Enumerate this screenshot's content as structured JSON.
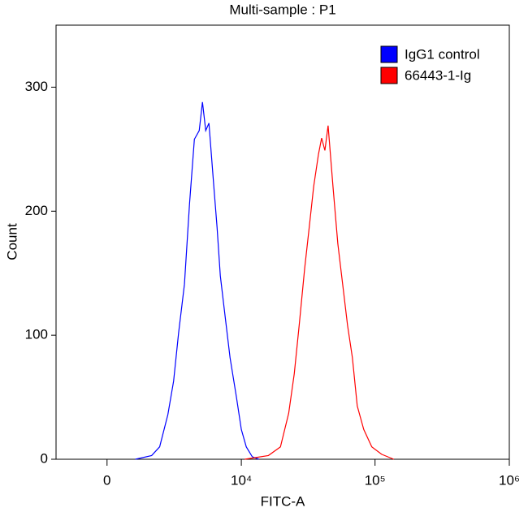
{
  "chart_data": {
    "type": "line",
    "title": "Multi-sample : P1",
    "x_label": "FITC-A",
    "y_label": "Count",
    "x_scale": "biexponential",
    "xlim": [
      -2000,
      1000000
    ],
    "ylim": [
      0,
      350
    ],
    "xticks": [
      0,
      {
        "value": 10000,
        "label": "10⁴"
      },
      {
        "value": 100000,
        "label": "10⁵"
      },
      {
        "value": 1000000,
        "label": "10⁶"
      }
    ],
    "yticks": [
      0,
      100,
      200,
      300
    ],
    "series": [
      {
        "name": "IgG1 control",
        "color": "#0000ff",
        "x": [
          1020,
          1700,
          2080,
          2510,
          2840,
          3150,
          3540,
          3910,
          4290,
          4700,
          4990,
          5300,
          5620,
          6140,
          6510,
          6900,
          7520,
          8200,
          9180,
          10000,
          10900,
          12100,
          13600
        ],
        "values": [
          0,
          3,
          10,
          36,
          63,
          102,
          141,
          206,
          258,
          265,
          288,
          265,
          271,
          220,
          187,
          148,
          115,
          82,
          50,
          24,
          10,
          2,
          0
        ]
      },
      {
        "name": "66443-1-Ig",
        "color": "#ff0000",
        "x": [
          10600,
          16000,
          19700,
          22700,
          25000,
          27200,
          29900,
          32100,
          34900,
          37900,
          40000,
          42300,
          44700,
          48600,
          52800,
          57400,
          62400,
          67800,
          73700,
          82400,
          94600,
          112000,
          138000
        ],
        "values": [
          0,
          3,
          10,
          37,
          69,
          108,
          154,
          184,
          220,
          246,
          259,
          249,
          269,
          220,
          174,
          141,
          108,
          82,
          43,
          24,
          10,
          4,
          0
        ]
      }
    ],
    "legend": "upper right"
  }
}
